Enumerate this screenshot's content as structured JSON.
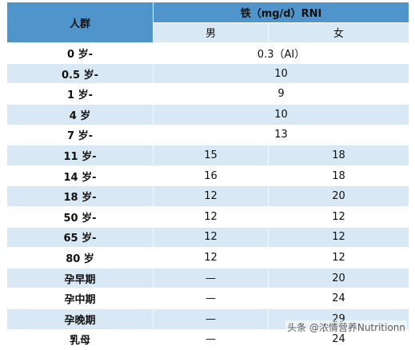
{
  "header": {
    "group_label": "人群",
    "iron_label": "铁（mg/d）RNI",
    "male_label": "男",
    "female_label": "女"
  },
  "rows": [
    {
      "group": "0 岁-",
      "value": "0.3（AI）"
    },
    {
      "group": "0.5 岁-",
      "value": "10"
    },
    {
      "group": "1 岁-",
      "value": "9"
    },
    {
      "group": "4 岁",
      "value": "10"
    },
    {
      "group": "7 岁-",
      "value": "13"
    },
    {
      "group": "11 岁-",
      "male": "15",
      "female": "18"
    },
    {
      "group": "14 岁-",
      "male": "16",
      "female": "18"
    },
    {
      "group": "18 岁-",
      "male": "12",
      "female": "20"
    },
    {
      "group": "50 岁-",
      "male": "12",
      "female": "12"
    },
    {
      "group": "65 岁-",
      "male": "12",
      "female": "12"
    },
    {
      "group": "80 岁",
      "male": "12",
      "female": "12"
    },
    {
      "group": "孕早期",
      "male": "—",
      "female": "20"
    },
    {
      "group": "孕中期",
      "male": "—",
      "female": "24"
    },
    {
      "group": "孕晚期",
      "male": "—",
      "female": "29"
    },
    {
      "group": "乳母",
      "male": "—",
      "female": "24"
    }
  ],
  "watermark": "头条 @浓情营养Nutritionn",
  "colors": {
    "header_bg": "#4f95cb",
    "band_bg": "#d9e8f5",
    "row_bg": "#ffffff"
  }
}
